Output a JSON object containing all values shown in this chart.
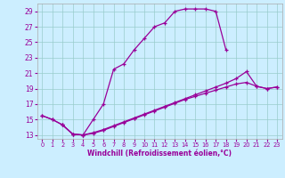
{
  "xlabel": "Windchill (Refroidissement éolien,°C)",
  "bg_color": "#cceeff",
  "line_color": "#990099",
  "grid_color": "#99cccc",
  "xlim": [
    -0.5,
    23.5
  ],
  "ylim": [
    12.5,
    30.0
  ],
  "yticks": [
    13,
    15,
    17,
    19,
    21,
    23,
    25,
    27,
    29
  ],
  "xticks": [
    0,
    1,
    2,
    3,
    4,
    5,
    6,
    7,
    8,
    9,
    10,
    11,
    12,
    13,
    14,
    15,
    16,
    17,
    18,
    19,
    20,
    21,
    22,
    23
  ],
  "line1_x": [
    0,
    1,
    2,
    3,
    4,
    5,
    6,
    7,
    8,
    9,
    10,
    11,
    12,
    13,
    14,
    15,
    16,
    17,
    18
  ],
  "line1_y": [
    15.5,
    15.0,
    14.3,
    13.1,
    13.0,
    15.0,
    17.0,
    21.5,
    22.2,
    24.0,
    25.5,
    27.0,
    27.5,
    29.0,
    29.3,
    29.3,
    29.3,
    29.0,
    24.0
  ],
  "line2_x": [
    0,
    1,
    2,
    3,
    4,
    5,
    6,
    7,
    8,
    9,
    10,
    11,
    12,
    13,
    14,
    15,
    16,
    17,
    18,
    19,
    20,
    21,
    22,
    23
  ],
  "line2_y": [
    15.5,
    15.0,
    14.3,
    13.1,
    13.0,
    13.3,
    13.7,
    14.2,
    14.7,
    15.2,
    15.7,
    16.2,
    16.7,
    17.2,
    17.7,
    18.2,
    18.7,
    19.2,
    19.7,
    20.3,
    21.2,
    19.3,
    19.0,
    19.2
  ],
  "line3_x": [
    2,
    3,
    4,
    5,
    6,
    7,
    8,
    9,
    10,
    11,
    12,
    13,
    14,
    15,
    16,
    17,
    18,
    19,
    20,
    21,
    22,
    23
  ],
  "line3_y": [
    14.3,
    13.1,
    13.0,
    13.2,
    13.6,
    14.1,
    14.6,
    15.1,
    15.6,
    16.1,
    16.6,
    17.1,
    17.6,
    18.0,
    18.4,
    18.8,
    19.2,
    19.6,
    19.8,
    19.3,
    19.0,
    19.2
  ]
}
